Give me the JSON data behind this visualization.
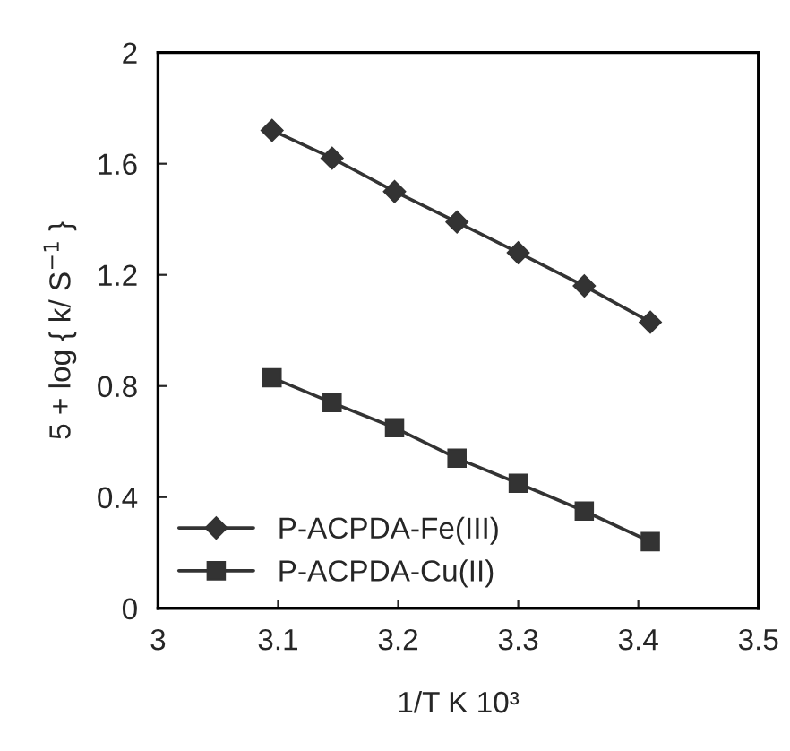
{
  "chart_data": {
    "type": "line",
    "xlabel": "1/T K 10³",
    "ylabel": "5 + log { k/ S$^{−1}$ }",
    "x": [
      3.095,
      3.145,
      3.197,
      3.249,
      3.3,
      3.355,
      3.41
    ],
    "series": [
      {
        "name": "P-ACPDA-Fe(III)",
        "color": "#333333",
        "marker": "diamond",
        "values": [
          1.72,
          1.62,
          1.5,
          1.39,
          1.28,
          1.16,
          1.03
        ]
      },
      {
        "name": "P-ACPDA-Cu(II)",
        "color": "#333333",
        "marker": "square",
        "values": [
          0.83,
          0.74,
          0.65,
          0.54,
          0.45,
          0.35,
          0.24
        ]
      }
    ],
    "xlim": [
      3,
      3.5
    ],
    "xticks": [
      3,
      3.1,
      3.2,
      3.3,
      3.4,
      3.5
    ],
    "ylim": [
      0,
      2
    ],
    "yticks": [
      0,
      0.4,
      0.8,
      1.2,
      1.6,
      2
    ],
    "grid": false,
    "legend": "bottom left"
  }
}
